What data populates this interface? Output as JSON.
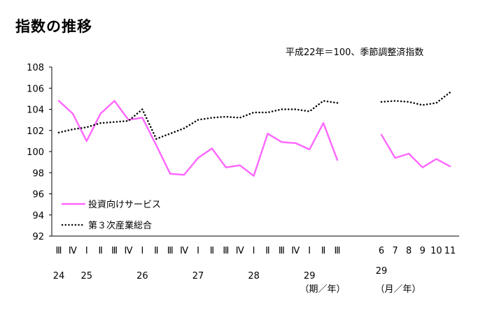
{
  "title": "指数の推移",
  "subtitle": "平成22年＝100、季節調整済指数",
  "chart_data": {
    "type": "line",
    "y_ticks": [
      "108",
      "106",
      "104",
      "102",
      "100",
      "98",
      "96",
      "94",
      "92"
    ],
    "ylim": [
      92,
      108
    ],
    "grid": false,
    "legend_placement": "bottom-left",
    "quarter_labels": [
      "Ⅲ",
      "Ⅳ",
      "Ⅰ",
      "Ⅱ",
      "Ⅲ",
      "Ⅳ",
      "Ⅰ",
      "Ⅱ",
      "Ⅲ",
      "Ⅳ",
      "Ⅰ",
      "Ⅱ",
      "Ⅲ",
      "Ⅳ",
      "Ⅰ",
      "Ⅱ",
      "Ⅲ",
      "Ⅳ",
      "Ⅰ",
      "Ⅱ",
      "Ⅲ"
    ],
    "year_labels": [
      {
        "text": "24",
        "at": 0
      },
      {
        "text": "25",
        "at": 2
      },
      {
        "text": "26",
        "at": 6
      },
      {
        "text": "27",
        "at": 10
      },
      {
        "text": "28",
        "at": 14
      },
      {
        "text": "29",
        "at": 18
      }
    ],
    "quarter_unit": "（期／年）",
    "month_labels": [
      "6",
      "7",
      "8",
      "9",
      "10",
      "11"
    ],
    "month_year_label": "29",
    "month_unit": "（月／年）",
    "series": [
      {
        "name": "投資向けサービス",
        "color": "#FF66FF",
        "style": "solid",
        "quarterly": [
          104.8,
          103.6,
          101.0,
          103.6,
          104.8,
          103.0,
          103.2,
          100.6,
          97.9,
          97.8,
          99.4,
          100.3,
          98.5,
          98.7,
          97.7,
          101.7,
          100.9,
          100.8,
          100.2,
          102.7,
          99.2
        ],
        "monthly": [
          101.6,
          99.4,
          99.8,
          98.5,
          99.3,
          98.6
        ]
      },
      {
        "name": "第３次産業総合",
        "color": "#000000",
        "style": "dotted",
        "quarterly": [
          101.8,
          102.1,
          102.3,
          102.7,
          102.8,
          102.9,
          104.0,
          101.2,
          101.7,
          102.2,
          103.0,
          103.2,
          103.3,
          103.2,
          103.7,
          103.7,
          104.0,
          104.0,
          103.8,
          104.8,
          104.6
        ],
        "monthly": [
          104.7,
          104.8,
          104.7,
          104.4,
          104.6,
          105.6
        ]
      }
    ]
  }
}
